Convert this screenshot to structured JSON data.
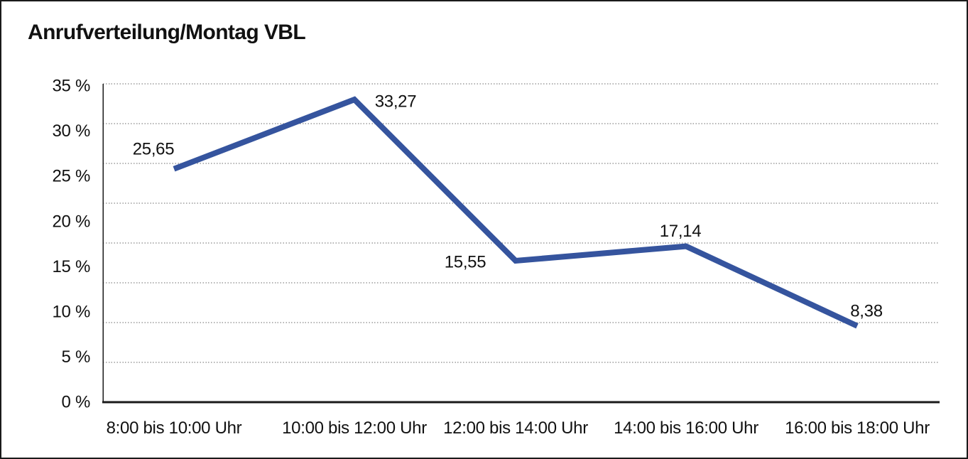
{
  "title": "Anrufverteilung/Montag VBL",
  "chart_data": {
    "type": "line",
    "title": "Anrufverteilung/Montag VBL",
    "categories": [
      "8:00 bis 10:00 Uhr",
      "10:00 bis 12:00 Uhr",
      "12:00 bis 14:00 Uhr",
      "14:00 bis 16:00 Uhr",
      "16:00 bis 18:00 Uhr"
    ],
    "values": [
      25.65,
      33.27,
      15.55,
      17.14,
      8.38
    ],
    "value_labels": [
      "25,65",
      "33,27",
      "15,55",
      "17,14",
      "8,38"
    ],
    "unit": "%",
    "xlabel": "",
    "ylabel": "",
    "ylim": [
      0,
      35
    ],
    "yticks": {
      "values": [
        35,
        30,
        25,
        20,
        15,
        10,
        5,
        0
      ],
      "labels": [
        "35 %",
        "30 %",
        "25 %",
        "20 %",
        "15 %",
        "10 %",
        "5 %",
        "0 %"
      ]
    },
    "grid": "horizontal-dotted",
    "gridline_count": 9,
    "legend": "none",
    "colors": {
      "line": "#35549E",
      "grid_dots": "#6A6A6A",
      "axis": "#1A1A1A",
      "text": "#111111",
      "background": "#FFFFFF",
      "border": "#1A1A1A"
    }
  }
}
